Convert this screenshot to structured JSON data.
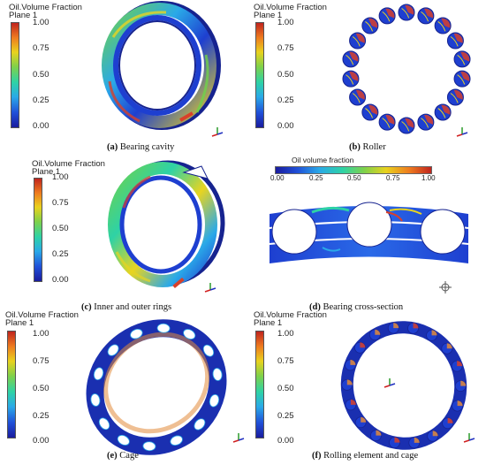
{
  "legend": {
    "title": "Oil.Volume Fraction",
    "subtitle": "Plane 1",
    "ticks": [
      "1.00",
      "0.75",
      "0.50",
      "0.25",
      "0.00"
    ]
  },
  "legend_h": {
    "title": "Oil volume fraction",
    "ticks": [
      "0.00",
      "0.25",
      "0.50",
      "0.75",
      "1.00"
    ]
  },
  "panels": [
    {
      "label": "(a)",
      "caption": "Bearing cavity"
    },
    {
      "label": "(b)",
      "caption": "Roller"
    },
    {
      "label": "(c)",
      "caption": "Inner and outer rings"
    },
    {
      "label": "(d)",
      "caption": "Bearing cross-section"
    },
    {
      "label": "(e)",
      "caption": "Cage"
    },
    {
      "label": "(f)",
      "caption": "Rolling element and cage"
    }
  ],
  "colors": {
    "ring_blue": "#1e3fd0",
    "ring_dark": "#16238f",
    "oil_red": "#d8402a",
    "oil_green": "#6fd24a",
    "oil_yellow": "#e8d420"
  }
}
